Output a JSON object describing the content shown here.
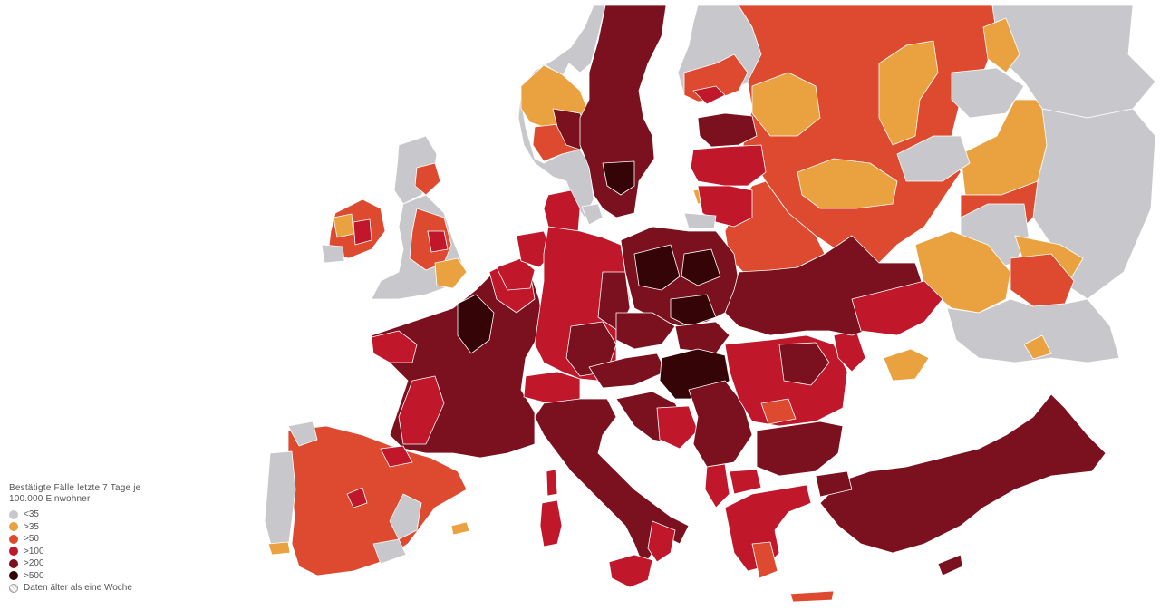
{
  "legend": {
    "title_line1": "Bestätigte Fälle letzte 7 Tage je",
    "title_line2": "100.000 Einwohner",
    "items": [
      {
        "label": "<35",
        "color": "#c8c8cc"
      },
      {
        "label": ">35",
        "color": "#e9a23f"
      },
      {
        "label": ">50",
        "color": "#de4a2f"
      },
      {
        "label": ">100",
        "color": "#c0172b"
      },
      {
        "label": ">200",
        "color": "#7b111e"
      },
      {
        "label": ">500",
        "color": "#340406"
      }
    ],
    "stale_label": "Daten älter als eine Woche"
  },
  "colors": {
    "lt35": "#c8c8cc",
    "gt35": "#e9a23f",
    "gt50": "#de4a2f",
    "gt100": "#c0172b",
    "gt200": "#7b111e",
    "gt500": "#340406"
  }
}
